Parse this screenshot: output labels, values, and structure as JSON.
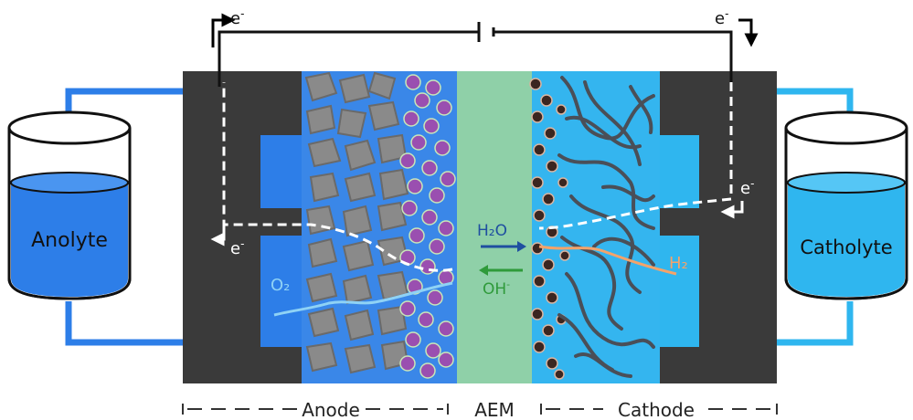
{
  "tanks": {
    "anolyte": "Anolyte",
    "catholyte": "Catholyte"
  },
  "electron": {
    "base": "e",
    "sup": "-"
  },
  "species": {
    "o2": "O₂",
    "h2o": "H₂O",
    "oh": "OH",
    "oh_sup": "-",
    "h2": "H₂"
  },
  "bottom_labels": {
    "anode": "Anode",
    "aem": "AEM",
    "cathode": "Cathode"
  },
  "colors": {
    "tank_blue": "#2d7ee8",
    "tank_cyan": "#2fb6ef",
    "plate": "#3a3a3a",
    "anode_bg": "#3a87e8",
    "cathode_bg": "#34b5ef",
    "membrane": "#8fd0a8",
    "particle_purple": "#9a4fb0",
    "h2o_arrow": "#1f4fa0",
    "oh_arrow": "#2f9a3a",
    "h2_label": "#f4a36a",
    "o2_label": "#8fd2f5"
  }
}
